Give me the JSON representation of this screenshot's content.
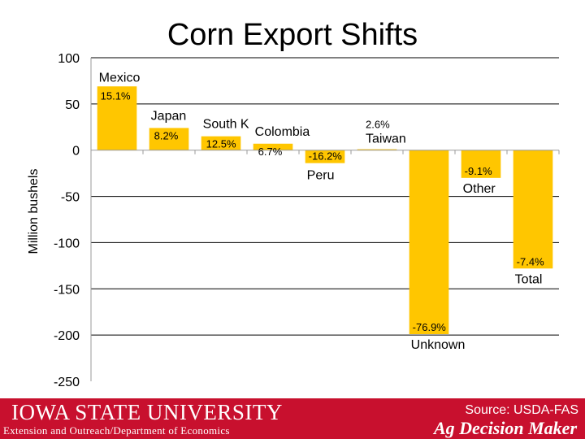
{
  "chart_data": {
    "type": "bar",
    "title": "Corn Export Shifts",
    "ylabel": "Million bushels",
    "xlabel": "",
    "ylim": [
      -250,
      100
    ],
    "yticks": [
      100,
      50,
      0,
      -50,
      -100,
      -150,
      -200,
      -250
    ],
    "grid": true,
    "categories": [
      "Mexico",
      "Japan",
      "South Korea",
      "Colombia",
      "Peru",
      "Taiwan",
      "Unknown",
      "Other",
      "Total"
    ],
    "category_labels": [
      "Mexico",
      "Japan",
      "South K",
      "Colombia",
      "Peru",
      "Taiwan",
      "Unknown",
      "Other",
      "Total"
    ],
    "values": [
      69,
      24,
      15,
      7,
      -14,
      1,
      -199,
      -30,
      -128
    ],
    "pct_labels": [
      "15.1%",
      "8.2%",
      "12.5%",
      "6.7%",
      "-16.2%",
      "2.6%",
      "-76.9%",
      "-9.1%",
      "-7.4%"
    ],
    "bar_color": "#ffc600"
  },
  "footer": {
    "university": "IOWA STATE UNIVERSITY",
    "extension": "Extension and Outreach/Department of Economics",
    "source": "Source: USDA-FAS",
    "brand": "Ag Decision Maker",
    "color": "#c8102e"
  }
}
